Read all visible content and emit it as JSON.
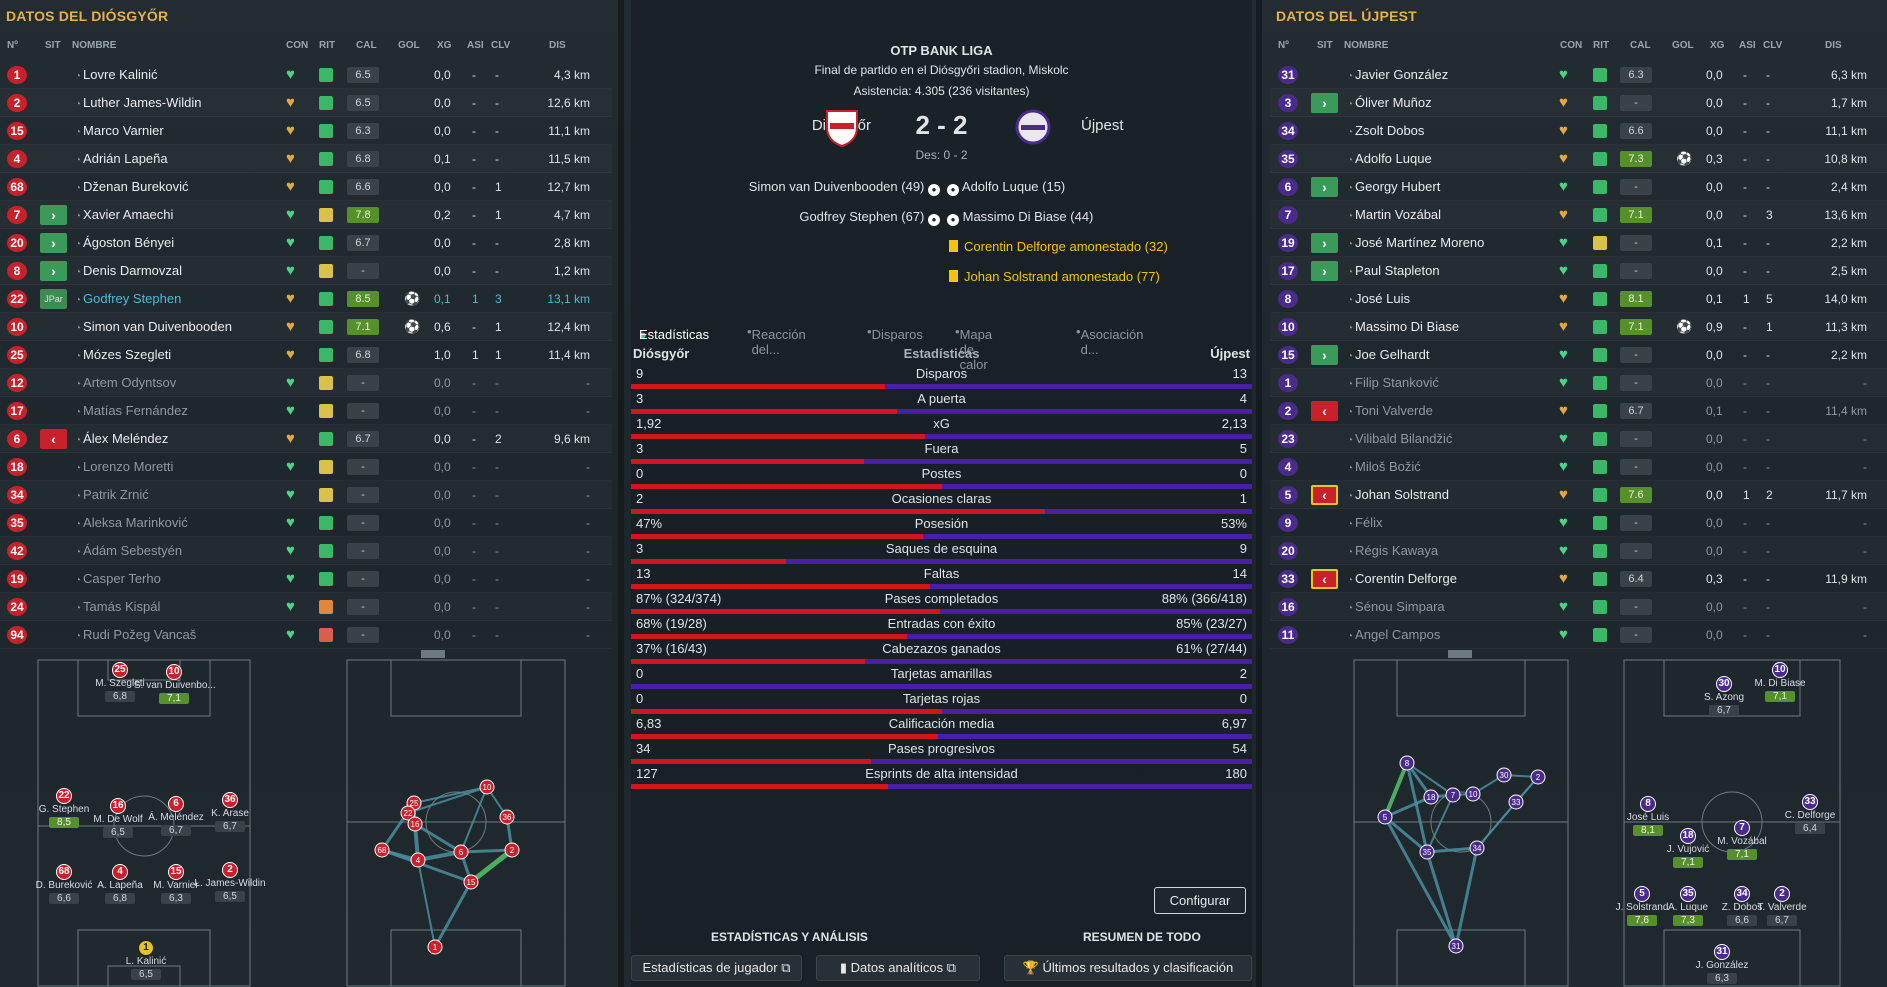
{
  "left": {
    "title": "DATOS DEL DIÓSGYŐR",
    "headers": [
      "Nº",
      "SIT",
      "NOMBRE",
      "CON",
      "RIT",
      "CAL",
      "GOL",
      "XG",
      "ASI",
      "CLV",
      "DIS"
    ],
    "players": [
      {
        "no": "1",
        "sit": "",
        "name": "Lovre Kalinić",
        "cond": "g2",
        "rit": "g",
        "cal": "6.5",
        "gol": "",
        "xg": "0,0",
        "asi": "-",
        "clv": "-",
        "dis": "4,3 km"
      },
      {
        "no": "2",
        "sit": "",
        "name": "Luther James-Wildin",
        "cond": "o",
        "rit": "g",
        "cal": "6.5",
        "gol": "",
        "xg": "0,0",
        "asi": "-",
        "clv": "-",
        "dis": "12,6 km"
      },
      {
        "no": "15",
        "sit": "",
        "name": "Marco Varnier",
        "cond": "o",
        "rit": "g",
        "cal": "6.3",
        "gol": "",
        "xg": "0,0",
        "asi": "-",
        "clv": "-",
        "dis": "11,1 km"
      },
      {
        "no": "4",
        "sit": "",
        "name": "Adrián Lapeña",
        "cond": "o",
        "rit": "g",
        "cal": "6.8",
        "gol": "",
        "xg": "0,1",
        "asi": "-",
        "clv": "-",
        "dis": "11,5 km"
      },
      {
        "no": "68",
        "sit": "",
        "name": "Dženan Bureković",
        "cond": "o",
        "rit": "g",
        "cal": "6.6",
        "gol": "",
        "xg": "0,0",
        "asi": "-",
        "clv": "1",
        "dis": "12,7 km"
      },
      {
        "no": "7",
        "sit": "in",
        "name": "Xavier Amaechi",
        "cond": "g2",
        "rit": "y",
        "cal": "7.8",
        "gol": "",
        "xg": "0,2",
        "asi": "-",
        "clv": "1",
        "dis": "4,7 km",
        "gd": true
      },
      {
        "no": "20",
        "sit": "in",
        "name": "Ágoston Bényei",
        "cond": "g2",
        "rit": "g",
        "cal": "6.7",
        "gol": "",
        "xg": "0,0",
        "asi": "-",
        "clv": "-",
        "dis": "2,8 km"
      },
      {
        "no": "8",
        "sit": "in",
        "name": "Denis Darmovzal",
        "cond": "g2",
        "rit": "y",
        "cal": "-",
        "gol": "",
        "xg": "0,0",
        "asi": "-",
        "clv": "-",
        "dis": "1,2 km"
      },
      {
        "no": "22",
        "sit": "jp",
        "name": "Godfrey Stephen",
        "cond": "o",
        "rit": "g",
        "cal": "8.5",
        "gol": "⚽",
        "xg": "0,1",
        "asi": "1",
        "clv": "3",
        "dis": "13,1 km",
        "gd": true,
        "hl": true
      },
      {
        "no": "10",
        "sit": "",
        "name": "Simon van Duivenbooden",
        "cond": "o",
        "rit": "g",
        "cal": "7.1",
        "gol": "⚽",
        "xg": "0,6",
        "asi": "-",
        "clv": "1",
        "dis": "12,4 km",
        "gd": true
      },
      {
        "no": "25",
        "sit": "",
        "name": "Mózes Szegleti",
        "cond": "o",
        "rit": "g",
        "cal": "6.8",
        "gol": "",
        "xg": "1,0",
        "asi": "1",
        "clv": "1",
        "dis": "11,4 km"
      },
      {
        "no": "12",
        "sit": "",
        "name": "Artem Odyntsov",
        "cond": "g2",
        "rit": "y",
        "cal": "-",
        "gol": "",
        "xg": "0,0",
        "asi": "-",
        "clv": "-",
        "dis": "-",
        "dim": true
      },
      {
        "no": "17",
        "sit": "",
        "name": "Matías Fernández",
        "cond": "g2",
        "rit": "y",
        "cal": "-",
        "gol": "",
        "xg": "0,0",
        "asi": "-",
        "clv": "-",
        "dis": "-",
        "dim": true
      },
      {
        "no": "6",
        "sit": "out",
        "name": "Álex Meléndez",
        "cond": "o",
        "rit": "g",
        "cal": "6.7",
        "gol": "",
        "xg": "0,0",
        "asi": "-",
        "clv": "2",
        "dis": "9,6 km"
      },
      {
        "no": "18",
        "sit": "",
        "name": "Lorenzo Moretti",
        "cond": "g2",
        "rit": "y",
        "cal": "-",
        "gol": "",
        "xg": "0,0",
        "asi": "-",
        "clv": "-",
        "dis": "-",
        "dim": true
      },
      {
        "no": "34",
        "sit": "",
        "name": "Patrik Zrnić",
        "cond": "g2",
        "rit": "y",
        "cal": "-",
        "gol": "",
        "xg": "0,0",
        "asi": "-",
        "clv": "-",
        "dis": "-",
        "dim": true
      },
      {
        "no": "35",
        "sit": "",
        "name": "Aleksa Marinković",
        "cond": "g2",
        "rit": "g",
        "cal": "-",
        "gol": "",
        "xg": "0,0",
        "asi": "-",
        "clv": "-",
        "dis": "-",
        "dim": true
      },
      {
        "no": "42",
        "sit": "",
        "name": "Ádám Sebestyén",
        "cond": "g2",
        "rit": "g",
        "cal": "-",
        "gol": "",
        "xg": "0,0",
        "asi": "-",
        "clv": "-",
        "dis": "-",
        "dim": true
      },
      {
        "no": "19",
        "sit": "",
        "name": "Casper Terho",
        "cond": "g2",
        "rit": "g",
        "cal": "-",
        "gol": "",
        "xg": "0,0",
        "asi": "-",
        "clv": "-",
        "dis": "-",
        "dim": true
      },
      {
        "no": "24",
        "sit": "",
        "name": "Tamás Kispál",
        "cond": "g2",
        "rit": "o",
        "cal": "-",
        "gol": "",
        "xg": "0,0",
        "asi": "-",
        "clv": "-",
        "dis": "-",
        "dim": true
      },
      {
        "no": "94",
        "sit": "",
        "name": "Rudi Požeg Vancaš",
        "cond": "g2",
        "rit": "r",
        "cal": "-",
        "gol": "",
        "xg": "0,0",
        "asi": "-",
        "clv": "-",
        "dis": "-",
        "dim": true
      }
    ],
    "sit_labels": {
      "jp": "JPar"
    },
    "pitch": [
      {
        "no": "25",
        "label": "M. Szegleti",
        "rate": "6,8"
      },
      {
        "no": "10",
        "label": "S. van Duivenbo...",
        "rate": "7,1",
        "gd": true
      },
      {
        "no": "22",
        "label": "G. Stephen",
        "rate": "8,5",
        "gd": true
      },
      {
        "no": "16",
        "label": "M. De Wolf",
        "rate": "6,5"
      },
      {
        "no": "6",
        "label": "Á. Meléndez",
        "rate": "6,7"
      },
      {
        "no": "36",
        "label": "K. Arase",
        "rate": "6,7"
      },
      {
        "no": "68",
        "label": "D. Bureković",
        "rate": "6,6"
      },
      {
        "no": "4",
        "label": "A. Lapeña",
        "rate": "6,8"
      },
      {
        "no": "15",
        "label": "M. Varnier",
        "rate": "6,3"
      },
      {
        "no": "2",
        "label": "L. James-Wildin",
        "rate": "6,5"
      },
      {
        "no": "1",
        "label": "L. Kalinić",
        "rate": "6,5"
      }
    ],
    "pass_nodes": [
      "25",
      "22",
      "16",
      "10",
      "36",
      "68",
      "4",
      "6",
      "2",
      "15",
      "1"
    ]
  },
  "right": {
    "title": "DATOS DEL ÚJPEST",
    "headers": [
      "Nº",
      "SIT",
      "NOMBRE",
      "CON",
      "RIT",
      "CAL",
      "GOL",
      "XG",
      "ASI",
      "CLV",
      "DIS"
    ],
    "players": [
      {
        "no": "31",
        "sit": "",
        "name": "Javier González",
        "cond": "g2",
        "rit": "g",
        "cal": "6.3",
        "gol": "",
        "xg": "0,0",
        "asi": "-",
        "clv": "-",
        "dis": "6,3 km"
      },
      {
        "no": "3",
        "sit": "in",
        "name": "Óliver Muñoz",
        "cond": "o",
        "rit": "g",
        "cal": "-",
        "gol": "",
        "xg": "0,0",
        "asi": "-",
        "clv": "-",
        "dis": "1,7 km"
      },
      {
        "no": "34",
        "sit": "",
        "name": "Zsolt Dobos",
        "cond": "o",
        "rit": "g",
        "cal": "6.6",
        "gol": "",
        "xg": "0,0",
        "asi": "-",
        "clv": "-",
        "dis": "11,1 km"
      },
      {
        "no": "35",
        "sit": "",
        "name": "Adolfo Luque",
        "cond": "o",
        "rit": "g",
        "cal": "7.3",
        "gol": "⚽",
        "xg": "0,3",
        "asi": "-",
        "clv": "-",
        "dis": "10,8 km",
        "gd": true
      },
      {
        "no": "6",
        "sit": "in",
        "name": "Georgy Hubert",
        "cond": "g2",
        "rit": "g",
        "cal": "-",
        "gol": "",
        "xg": "0,0",
        "asi": "-",
        "clv": "-",
        "dis": "2,4 km"
      },
      {
        "no": "7",
        "sit": "",
        "name": "Martin Vozábal",
        "cond": "o",
        "rit": "g",
        "cal": "7.1",
        "gol": "",
        "xg": "0,0",
        "asi": "-",
        "clv": "3",
        "dis": "13,6 km",
        "gd": true
      },
      {
        "no": "19",
        "sit": "in",
        "name": "José Martínez Moreno",
        "cond": "g2",
        "rit": "y",
        "cal": "-",
        "gol": "",
        "xg": "0,1",
        "asi": "-",
        "clv": "-",
        "dis": "2,2 km"
      },
      {
        "no": "17",
        "sit": "in",
        "name": "Paul Stapleton",
        "cond": "g2",
        "rit": "g",
        "cal": "-",
        "gol": "",
        "xg": "0,0",
        "asi": "-",
        "clv": "-",
        "dis": "2,5 km"
      },
      {
        "no": "8",
        "sit": "",
        "name": "José Luis",
        "cond": "o",
        "rit": "g",
        "cal": "8.1",
        "gol": "",
        "xg": "0,1",
        "asi": "1",
        "clv": "5",
        "dis": "14,0 km",
        "gd": true
      },
      {
        "no": "10",
        "sit": "",
        "name": "Massimo Di Biase",
        "cond": "o",
        "rit": "g",
        "cal": "7.1",
        "gol": "⚽",
        "xg": "0,9",
        "asi": "-",
        "clv": "1",
        "dis": "11,3 km",
        "gd": true
      },
      {
        "no": "15",
        "sit": "in",
        "name": "Joe Gelhardt",
        "cond": "g2",
        "rit": "g",
        "cal": "-",
        "gol": "",
        "xg": "0,0",
        "asi": "-",
        "clv": "-",
        "dis": "2,2 km"
      },
      {
        "no": "1",
        "sit": "",
        "name": "Filip Stanković",
        "cond": "g2",
        "rit": "g",
        "cal": "-",
        "gol": "",
        "xg": "0,0",
        "asi": "-",
        "clv": "-",
        "dis": "-",
        "dim": true
      },
      {
        "no": "2",
        "sit": "out",
        "name": "Toni Valverde",
        "cond": "o",
        "rit": "g",
        "cal": "6.7",
        "gol": "",
        "xg": "0,1",
        "asi": "-",
        "clv": "-",
        "dis": "11,4 km",
        "dim": true
      },
      {
        "no": "23",
        "sit": "",
        "name": "Vilibald Bilandžić",
        "cond": "g2",
        "rit": "g",
        "cal": "-",
        "gol": "",
        "xg": "0,0",
        "asi": "-",
        "clv": "-",
        "dis": "-",
        "dim": true
      },
      {
        "no": "4",
        "sit": "",
        "name": "Miloš Božić",
        "cond": "g2",
        "rit": "g",
        "cal": "-",
        "gol": "",
        "xg": "0,0",
        "asi": "-",
        "clv": "-",
        "dis": "-",
        "dim": true
      },
      {
        "no": "5",
        "sit": "outY",
        "name": "Johan Solstrand",
        "cond": "o",
        "rit": "g",
        "cal": "7.6",
        "gol": "",
        "xg": "0,0",
        "asi": "1",
        "clv": "2",
        "dis": "11,7 km",
        "gd": true
      },
      {
        "no": "9",
        "sit": "",
        "name": "Félix",
        "cond": "g2",
        "rit": "g",
        "cal": "-",
        "gol": "",
        "xg": "0,0",
        "asi": "-",
        "clv": "-",
        "dis": "-",
        "dim": true
      },
      {
        "no": "20",
        "sit": "",
        "name": "Régis Kawaya",
        "cond": "g2",
        "rit": "g",
        "cal": "-",
        "gol": "",
        "xg": "0,0",
        "asi": "-",
        "clv": "-",
        "dis": "-",
        "dim": true
      },
      {
        "no": "33",
        "sit": "outY",
        "name": "Corentin Delforge",
        "cond": "o",
        "rit": "g",
        "cal": "6.4",
        "gol": "",
        "xg": "0,3",
        "asi": "-",
        "clv": "-",
        "dis": "11,9 km"
      },
      {
        "no": "16",
        "sit": "",
        "name": "Sénou Simpara",
        "cond": "g2",
        "rit": "g",
        "cal": "-",
        "gol": "",
        "xg": "0,0",
        "asi": "-",
        "clv": "-",
        "dis": "-",
        "dim": true
      },
      {
        "no": "11",
        "sit": "",
        "name": "Angel Campos",
        "cond": "g2",
        "rit": "g",
        "cal": "-",
        "gol": "",
        "xg": "0,0",
        "asi": "-",
        "clv": "-",
        "dis": "-",
        "dim": true
      }
    ],
    "pitch": [
      {
        "no": "30",
        "label": "S. Azong",
        "rate": "6,7"
      },
      {
        "no": "10",
        "label": "M. Di Biase",
        "rate": "7,1",
        "gd": true
      },
      {
        "no": "8",
        "label": "José Luis",
        "rate": "8,1",
        "gd": true
      },
      {
        "no": "18",
        "label": "J. Vujović",
        "rate": "7,1",
        "gd": true
      },
      {
        "no": "7",
        "label": "M. Vozábal",
        "rate": "7,1",
        "gd": true
      },
      {
        "no": "33",
        "label": "C. Delforge",
        "rate": "6,4"
      },
      {
        "no": "5",
        "label": "J. Solstrand",
        "rate": "7,6",
        "gd": true
      },
      {
        "no": "35",
        "label": "A. Luque",
        "rate": "7,3",
        "gd": true
      },
      {
        "no": "34",
        "label": "Z. Dobos",
        "rate": "6,6"
      },
      {
        "no": "2",
        "label": "T. Valverde",
        "rate": "6,7"
      },
      {
        "no": "31",
        "label": "J. González",
        "rate": "6,3"
      }
    ],
    "pass_nodes": [
      "8",
      "30",
      "18",
      "10",
      "7",
      "33",
      "5",
      "35",
      "34",
      "2",
      "31"
    ]
  },
  "center": {
    "league": "OTP BANK LIGA",
    "subtitle": "Final de partido en el Diósgyőri stadion, Miskolc",
    "attendance": "Asistencia: 4.305 (236 visitantes)",
    "home": "Diósgyőr",
    "away": "Újpest",
    "score": "2 - 2",
    "halftime": "Des: 0 - 2",
    "home_events": [
      "Simon van Duivenbooden (49)",
      "Godfrey Stephen (67)"
    ],
    "away_events": [
      "Adolfo Luque (15)",
      "Massimo Di Biase (44)"
    ],
    "cards": [
      "Corentin Delforge amonestado (32)",
      "Johan Solstrand amonestado (77)"
    ],
    "tabs": [
      "Estadísticas",
      "Reacción del...",
      "Disparos",
      "Mapa de calor",
      "Asociación d..."
    ],
    "stats_title": "Estadísticas",
    "stats": [
      {
        "label": "Disparos",
        "l": "9",
        "r": "13",
        "lw": 9,
        "rw": 13
      },
      {
        "label": "A puerta",
        "l": "3",
        "r": "4",
        "lw": 3,
        "rw": 4
      },
      {
        "label": "xG",
        "l": "1,92",
        "r": "2,13",
        "lw": 1.92,
        "rw": 2.13
      },
      {
        "label": "Fuera",
        "l": "3",
        "r": "5",
        "lw": 3,
        "rw": 5
      },
      {
        "label": "Postes",
        "l": "0",
        "r": "0",
        "lw": 0,
        "rw": 0
      },
      {
        "label": "Ocasiones claras",
        "l": "2",
        "r": "1",
        "lw": 2,
        "rw": 1
      },
      {
        "label": "Posesión",
        "l": "47%",
        "r": "53%",
        "lw": 47,
        "rw": 53
      },
      {
        "label": "Saques de esquina",
        "l": "3",
        "r": "9",
        "lw": 3,
        "rw": 9
      },
      {
        "label": "Faltas",
        "l": "13",
        "r": "14",
        "lw": 13,
        "rw": 14
      },
      {
        "label": "Pases completados",
        "l": "87% (324/374)",
        "r": "88% (366/418)",
        "lw": 87,
        "rw": 88
      },
      {
        "label": "Entradas con éxito",
        "l": "68% (19/28)",
        "r": "85% (23/27)",
        "lw": 68,
        "rw": 85
      },
      {
        "label": "Cabezazos ganados",
        "l": "37% (16/43)",
        "r": "61% (27/44)",
        "lw": 37,
        "rw": 61
      },
      {
        "label": "Tarjetas amarillas",
        "l": "0",
        "r": "2",
        "lw": 0,
        "rw": 2
      },
      {
        "label": "Tarjetas rojas",
        "l": "0",
        "r": "0",
        "lw": 0,
        "rw": 0
      },
      {
        "label": "Calificación media",
        "l": "6,83",
        "r": "6,97",
        "lw": 6.83,
        "rw": 6.97
      },
      {
        "label": "Pases progresivos",
        "l": "34",
        "r": "54",
        "lw": 34,
        "rw": 54
      },
      {
        "label": "Esprints de alta intensidad",
        "l": "127",
        "r": "180",
        "lw": 127,
        "rw": 180
      }
    ],
    "configure": "Configurar",
    "section_left": "ESTADÍSTICAS Y ANÁLISIS",
    "section_right": "RESUMEN DE TODO",
    "btn1": "Estadísticas de jugador",
    "btn2": "Datos analíticos",
    "btn3": "Últimos resultados y clasificación"
  }
}
